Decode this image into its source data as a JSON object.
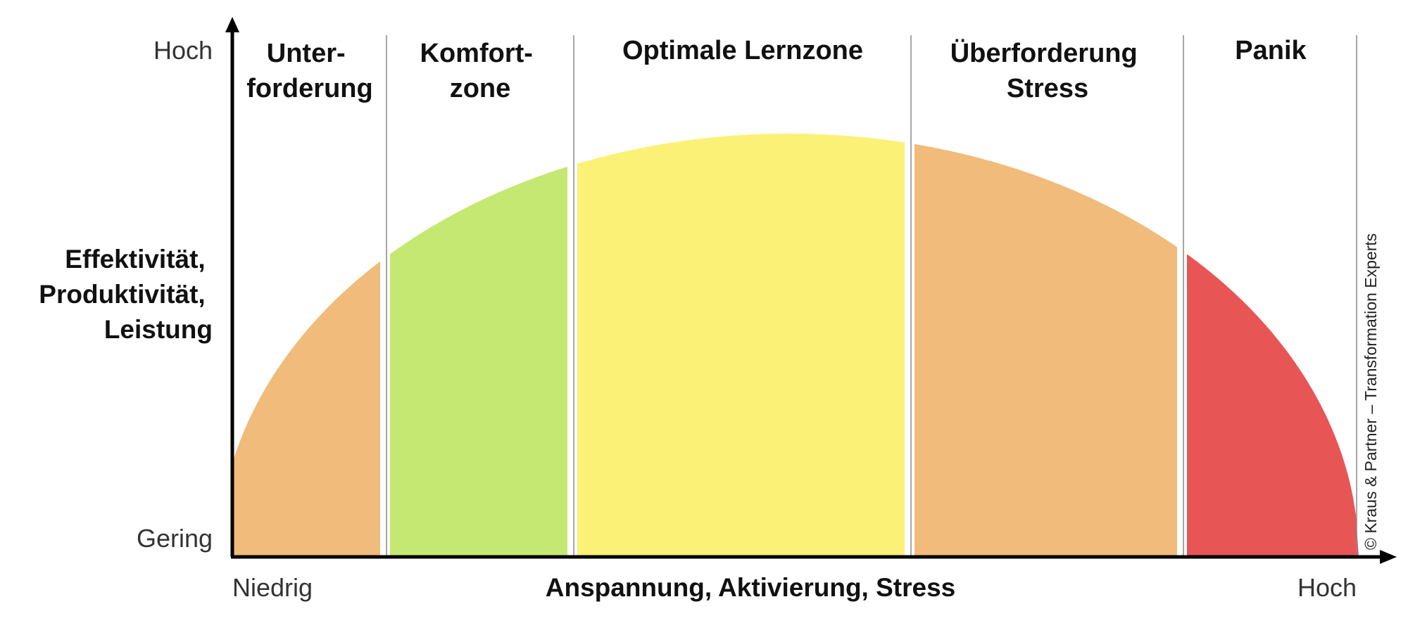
{
  "y_axis": {
    "label_lines": [
      "Effektivität,",
      "Produktivität,",
      "Leistung"
    ],
    "high": "Hoch",
    "low": "Gering"
  },
  "x_axis": {
    "label": "Anspannung, Aktivierung, Stress",
    "low": "Niedrig",
    "high": "Hoch"
  },
  "zones": [
    {
      "lines": [
        "Unter-",
        "forderung"
      ],
      "color": "#f1bb7b"
    },
    {
      "lines": [
        "Komfort-",
        "zone"
      ],
      "color": "#c5e872"
    },
    {
      "lines": [
        "Optimale Lernzone"
      ],
      "color": "#fcf177"
    },
    {
      "lines": [
        "Überforderung",
        "Stress"
      ],
      "color": "#f1bb7b"
    },
    {
      "lines": [
        "Panik"
      ],
      "color": "#e85555"
    }
  ],
  "copyright": "© Kraus & Partner – Transformation Experts"
}
